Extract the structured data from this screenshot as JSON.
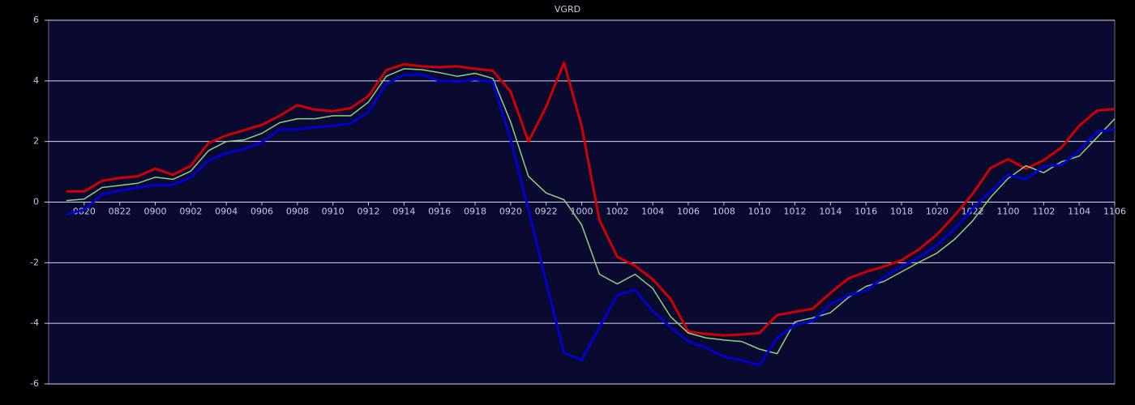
{
  "chart_data": {
    "type": "line",
    "title": "VGRD",
    "categories": [
      null,
      "0820",
      null,
      "0822",
      null,
      "0900",
      null,
      "0902",
      null,
      "0904",
      null,
      "0906",
      null,
      "0908",
      null,
      "0910",
      null,
      "0912",
      null,
      "0914",
      null,
      "0916",
      null,
      "0918",
      null,
      "0920",
      null,
      "0922",
      null,
      "1000",
      null,
      "1002",
      null,
      "1004",
      null,
      "1006",
      null,
      "1008",
      null,
      "1010",
      null,
      "1012",
      null,
      "1014",
      null,
      "1016",
      null,
      "1018",
      null,
      "1020",
      null,
      "1022",
      null,
      "1100",
      null,
      "1102",
      null,
      "1104",
      null,
      "1106"
    ],
    "series": [
      {
        "color": "#d00000",
        "values": [
          0.35,
          0.35,
          0.7,
          0.8,
          0.85,
          1.1,
          0.9,
          1.2,
          1.95,
          2.2,
          2.37,
          2.55,
          2.85,
          3.2,
          3.05,
          3.0,
          3.1,
          3.5,
          4.35,
          4.55,
          4.48,
          4.45,
          4.48,
          4.4,
          4.33,
          3.65,
          2.0,
          3.15,
          4.6,
          2.5,
          -0.6,
          -1.8,
          -2.1,
          -2.55,
          -3.2,
          -4.27,
          -4.35,
          -4.4,
          -4.37,
          -4.32,
          -3.73,
          -3.62,
          -3.52,
          -3.0,
          -2.52,
          -2.3,
          -2.13,
          -1.92,
          -1.55,
          -1.07,
          -0.43,
          0.27,
          1.12,
          1.42,
          1.1,
          1.38,
          1.8,
          2.52,
          3.02,
          3.07
        ]
      },
      {
        "color": "#90d080",
        "values": [
          0.05,
          0.1,
          0.48,
          0.55,
          0.62,
          0.82,
          0.75,
          1.02,
          1.7,
          2.0,
          2.05,
          2.27,
          2.62,
          2.75,
          2.75,
          2.85,
          2.85,
          3.3,
          4.15,
          4.4,
          4.37,
          4.27,
          4.15,
          4.25,
          4.08,
          2.65,
          0.85,
          0.3,
          0.08,
          -0.75,
          -2.38,
          -2.7,
          -2.38,
          -2.85,
          -3.78,
          -4.32,
          -4.48,
          -4.55,
          -4.6,
          -4.85,
          -5.0,
          -3.95,
          -3.82,
          -3.65,
          -3.15,
          -2.78,
          -2.62,
          -2.3,
          -1.98,
          -1.68,
          -1.22,
          -0.62,
          0.15,
          0.78,
          1.2,
          0.97,
          1.33,
          1.52,
          2.13,
          2.75
        ]
      },
      {
        "color": "#0000d0",
        "values": [
          -0.4,
          -0.25,
          0.25,
          0.38,
          0.48,
          0.57,
          0.57,
          0.82,
          1.37,
          1.62,
          1.75,
          1.97,
          2.4,
          2.4,
          2.47,
          2.52,
          2.6,
          2.98,
          3.9,
          4.2,
          4.2,
          4.0,
          3.97,
          4.05,
          3.97,
          2.08,
          -0.23,
          -2.65,
          -4.97,
          -5.22,
          -4.13,
          -3.07,
          -2.9,
          -3.6,
          -4.13,
          -4.6,
          -4.8,
          -5.1,
          -5.22,
          -5.38,
          -4.48,
          -4.05,
          -3.93,
          -3.37,
          -3.08,
          -2.93,
          -2.48,
          -2.13,
          -1.82,
          -1.42,
          -0.88,
          -0.22,
          0.35,
          0.9,
          0.75,
          1.18,
          1.22,
          1.7,
          2.32,
          2.4
        ]
      }
    ],
    "ylim": [
      -6,
      6
    ],
    "yticks": [
      -6,
      -4,
      -2,
      0,
      2,
      4,
      6
    ],
    "grid": true
  }
}
